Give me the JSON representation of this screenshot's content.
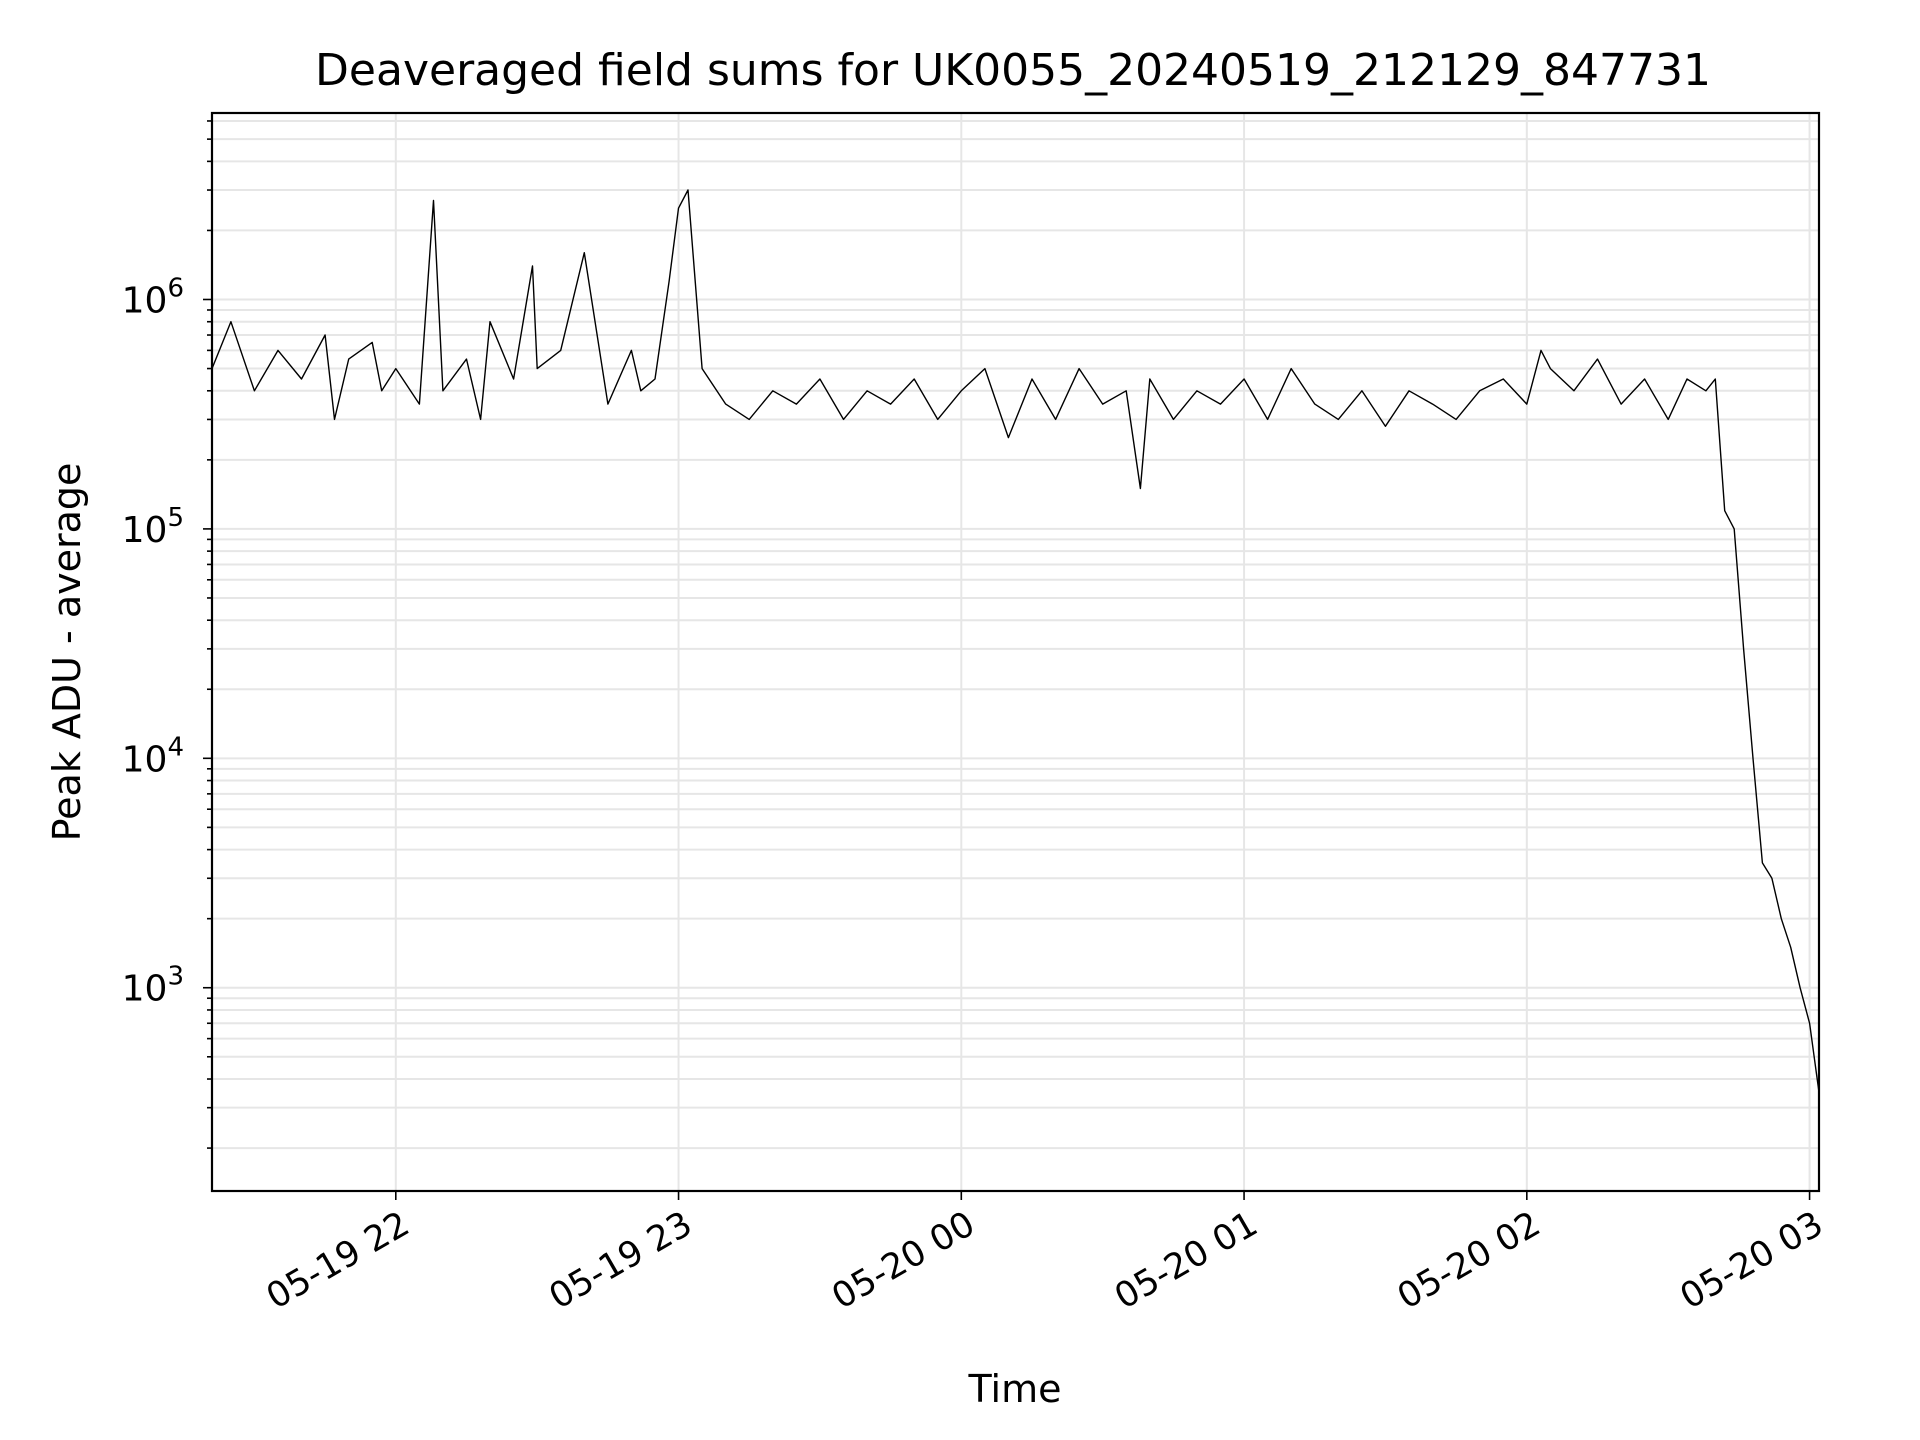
{
  "chart_data": {
    "type": "line",
    "title": "Deaveraged field sums for UK0055_20240519_212129_847731",
    "xlabel": "Time",
    "ylabel": "Peak ADU - average",
    "yscale": "log",
    "ylim": [
      130,
      6500000
    ],
    "xlim": [
      "2024-05-19 21:21",
      "2024-05-20 03:02"
    ],
    "grid": true,
    "line_color": "#000000",
    "x_ticks": [
      "05-19 22",
      "05-19 23",
      "05-20 00",
      "05-20 01",
      "05-20 02",
      "05-20 03"
    ],
    "y_ticks": [
      {
        "base": "10",
        "exp": "3",
        "value": 1000
      },
      {
        "base": "10",
        "exp": "4",
        "value": 10000
      },
      {
        "base": "10",
        "exp": "5",
        "value": 100000
      },
      {
        "base": "10",
        "exp": "6",
        "value": 1000000
      }
    ],
    "series": [
      {
        "x": [
          "2024-05-19 21:21",
          "2024-05-19 21:25",
          "2024-05-19 21:30",
          "2024-05-19 21:35",
          "2024-05-19 21:40",
          "2024-05-19 21:45",
          "2024-05-19 21:47",
          "2024-05-19 21:50",
          "2024-05-19 21:55",
          "2024-05-19 21:57",
          "2024-05-19 22:00",
          "2024-05-19 22:05",
          "2024-05-19 22:08",
          "2024-05-19 22:10",
          "2024-05-19 22:15",
          "2024-05-19 22:18",
          "2024-05-19 22:20",
          "2024-05-19 22:25",
          "2024-05-19 22:29",
          "2024-05-19 22:30",
          "2024-05-19 22:35",
          "2024-05-19 22:40",
          "2024-05-19 22:45",
          "2024-05-19 22:50",
          "2024-05-19 22:52",
          "2024-05-19 22:55",
          "2024-05-19 22:58",
          "2024-05-19 23:00",
          "2024-05-19 23:02",
          "2024-05-19 23:05",
          "2024-05-19 23:10",
          "2024-05-19 23:15",
          "2024-05-19 23:20",
          "2024-05-19 23:25",
          "2024-05-19 23:30",
          "2024-05-19 23:35",
          "2024-05-19 23:40",
          "2024-05-19 23:45",
          "2024-05-19 23:50",
          "2024-05-19 23:55",
          "2024-05-20 00:00",
          "2024-05-20 00:05",
          "2024-05-20 00:10",
          "2024-05-20 00:15",
          "2024-05-20 00:20",
          "2024-05-20 00:25",
          "2024-05-20 00:30",
          "2024-05-20 00:35",
          "2024-05-20 00:38",
          "2024-05-20 00:40",
          "2024-05-20 00:45",
          "2024-05-20 00:50",
          "2024-05-20 00:55",
          "2024-05-20 01:00",
          "2024-05-20 01:05",
          "2024-05-20 01:10",
          "2024-05-20 01:15",
          "2024-05-20 01:20",
          "2024-05-20 01:25",
          "2024-05-20 01:30",
          "2024-05-20 01:35",
          "2024-05-20 01:40",
          "2024-05-20 01:45",
          "2024-05-20 01:50",
          "2024-05-20 01:55",
          "2024-05-20 02:00",
          "2024-05-20 02:03",
          "2024-05-20 02:05",
          "2024-05-20 02:10",
          "2024-05-20 02:15",
          "2024-05-20 02:20",
          "2024-05-20 02:25",
          "2024-05-20 02:30",
          "2024-05-20 02:34",
          "2024-05-20 02:38",
          "2024-05-20 02:40",
          "2024-05-20 02:42",
          "2024-05-20 02:44",
          "2024-05-20 02:46",
          "2024-05-20 02:48",
          "2024-05-20 02:50",
          "2024-05-20 02:52",
          "2024-05-20 02:54",
          "2024-05-20 02:56",
          "2024-05-20 02:58",
          "2024-05-20 03:00",
          "2024-05-20 03:02"
        ],
        "y": [
          500000,
          800000,
          400000,
          600000,
          450000,
          700000,
          300000,
          550000,
          650000,
          400000,
          500000,
          350000,
          2700000,
          400000,
          550000,
          300000,
          800000,
          450000,
          1400000,
          500000,
          600000,
          1600000,
          350000,
          600000,
          400000,
          450000,
          1200000,
          2500000,
          3000000,
          500000,
          350000,
          300000,
          400000,
          350000,
          450000,
          300000,
          400000,
          350000,
          450000,
          300000,
          400000,
          500000,
          250000,
          450000,
          300000,
          500000,
          350000,
          400000,
          150000,
          450000,
          300000,
          400000,
          350000,
          450000,
          300000,
          500000,
          350000,
          300000,
          400000,
          280000,
          400000,
          350000,
          300000,
          400000,
          450000,
          350000,
          600000,
          500000,
          400000,
          550000,
          350000,
          450000,
          300000,
          450000,
          400000,
          450000,
          120000,
          100000,
          30000,
          10000,
          3500,
          3000,
          2000,
          1500,
          1000,
          700,
          350
        ]
      }
    ]
  }
}
